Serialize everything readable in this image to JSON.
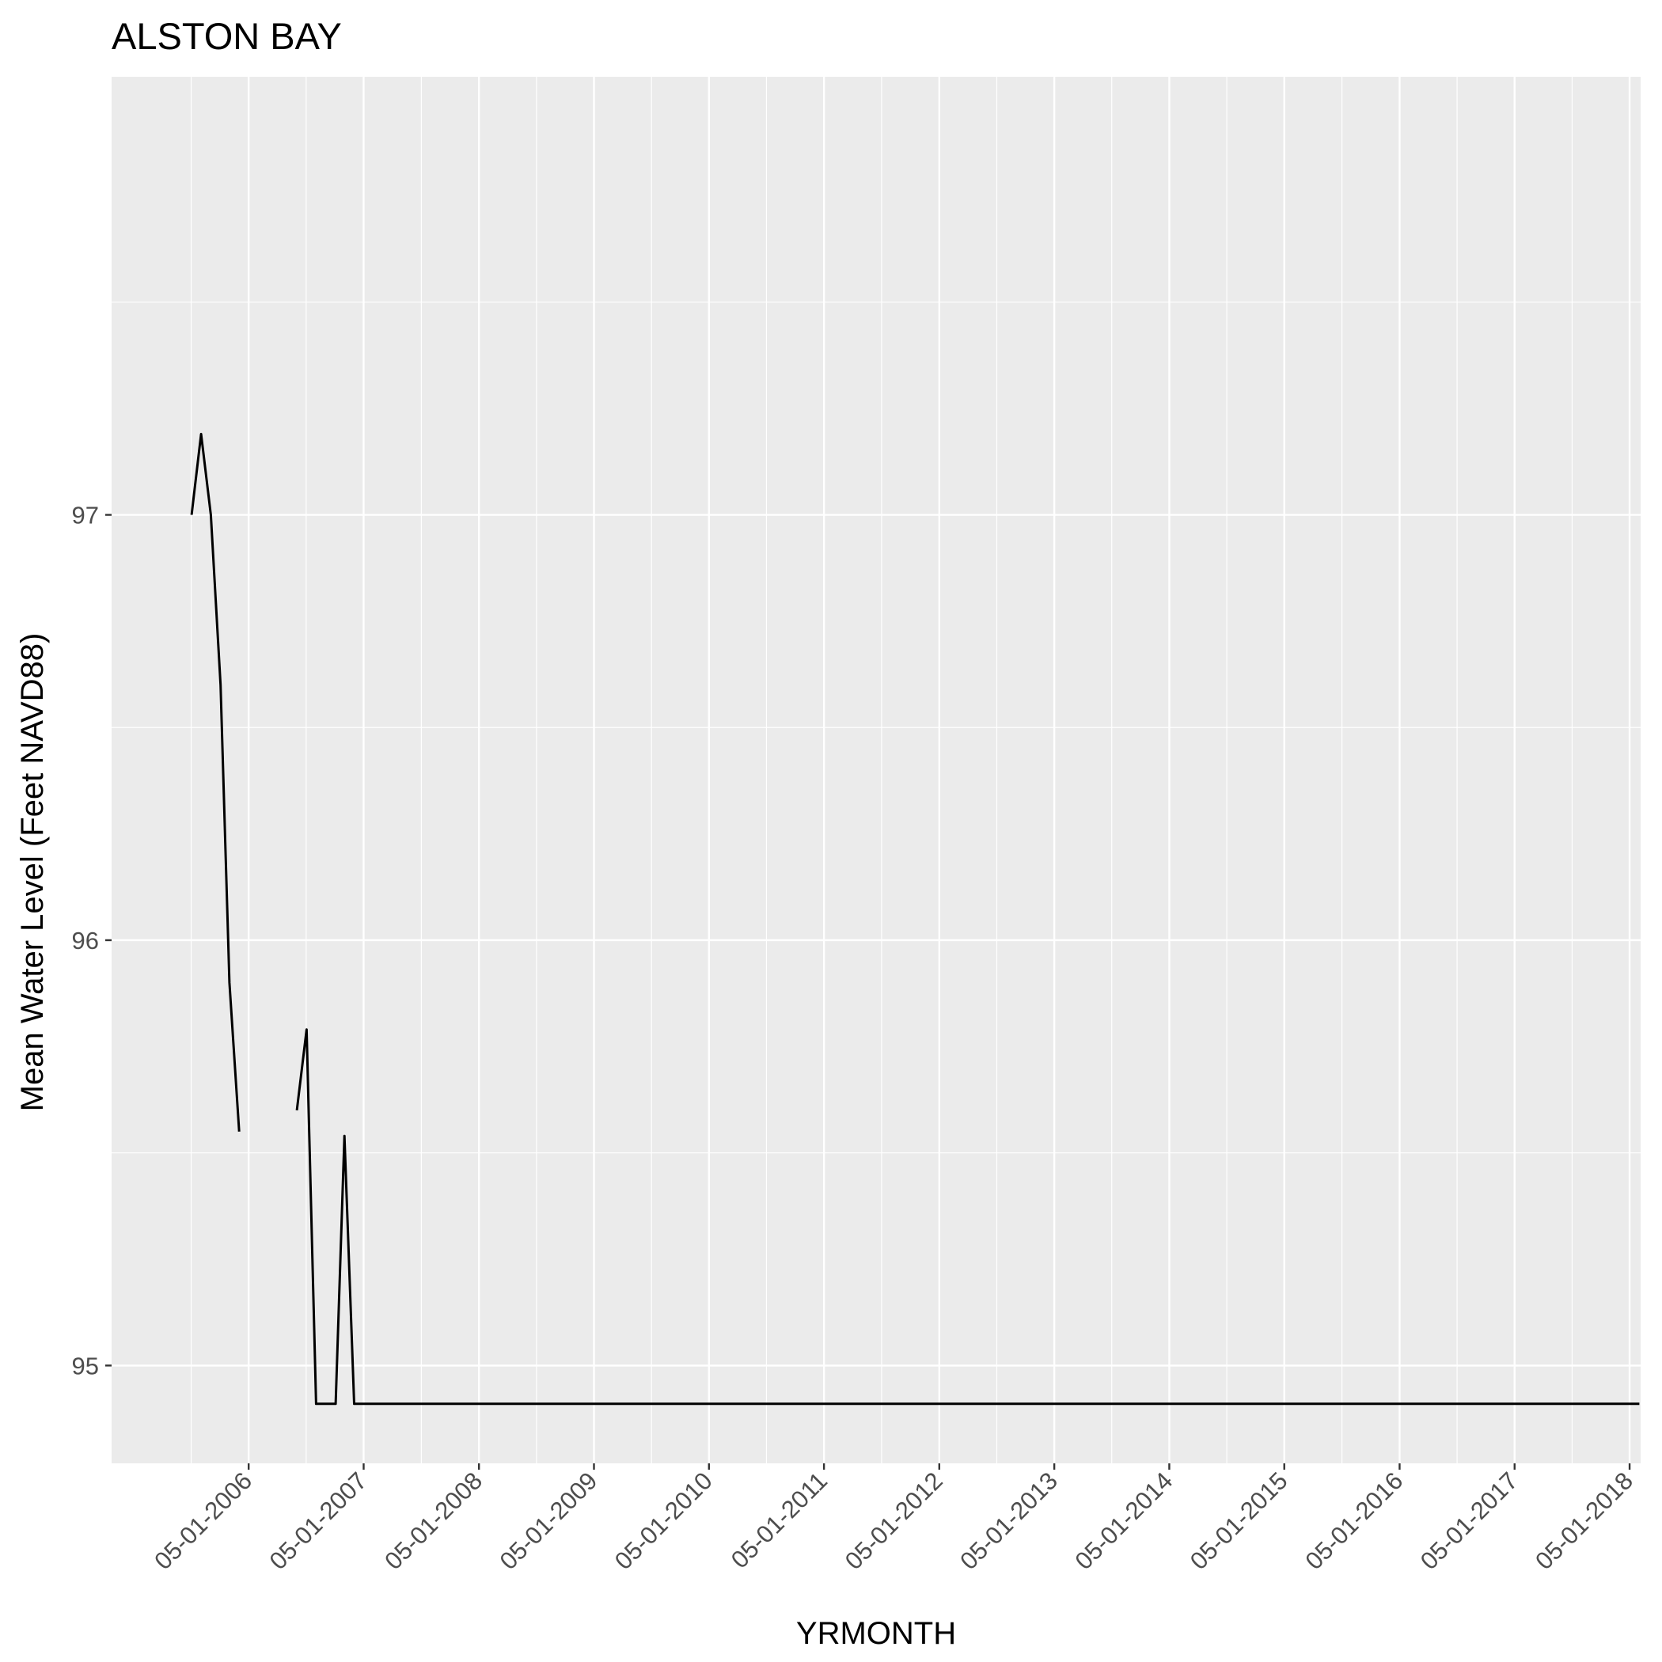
{
  "chart_data": {
    "type": "line",
    "title": "ALSTON BAY",
    "xlabel": "YRMONTH",
    "ylabel": "Mean Water Level (Feet NAVD88)",
    "xlim": [
      "2005-02-20",
      "2018-06-05"
    ],
    "ylim": [
      94.77,
      98.03
    ],
    "x_ticks": [
      "05-01-2006",
      "05-01-2007",
      "05-01-2008",
      "05-01-2009",
      "05-01-2010",
      "05-01-2011",
      "05-01-2012",
      "05-01-2013",
      "05-01-2014",
      "05-01-2015",
      "05-01-2016",
      "05-01-2017",
      "05-01-2018"
    ],
    "y_ticks": [
      95,
      96,
      97
    ],
    "grid": true,
    "background": "#EBEBEB",
    "series": [
      {
        "style": "line",
        "color": "#000000",
        "x": [
          "2005-11-01",
          "2005-12-01",
          "2006-01-01",
          "2006-02-01",
          "2006-03-01",
          "2006-04-01",
          null,
          "2006-10-01",
          "2006-11-01",
          "2006-12-01",
          "2007-01-01",
          "2007-02-01",
          "2007-03-01",
          "2007-04-01",
          "2007-05-01",
          "2007-06-01",
          "2007-07-01",
          "2007-08-01",
          "2007-09-01",
          "2007-10-01",
          "2007-11-01",
          "2007-12-01",
          "2008-01-01",
          "2008-02-01",
          "2008-03-01",
          "2008-04-01",
          "2008-05-01",
          "2008-06-01",
          "2008-07-01",
          "2008-08-01",
          "2008-09-01",
          "2008-10-01",
          "2008-11-01",
          "2008-12-01",
          "2009-01-01",
          "2009-02-01",
          "2009-03-01",
          "2009-04-01",
          "2009-05-01",
          "2009-06-01",
          "2009-07-01",
          "2009-08-01",
          "2009-09-01",
          "2009-10-01",
          "2009-11-01",
          "2009-12-01",
          "2010-01-01",
          "2010-02-01",
          "2010-03-01",
          "2010-04-01",
          "2010-05-01",
          "2010-06-01",
          "2010-07-01",
          "2010-08-01",
          "2010-09-01",
          "2010-10-01",
          "2010-11-01",
          "2010-12-01",
          "2011-01-01",
          "2011-02-01",
          "2011-03-01",
          "2011-04-01",
          "2011-05-01",
          "2011-06-01",
          "2011-07-01",
          "2011-08-01",
          "2011-09-01",
          "2011-10-01",
          "2011-11-01",
          "2011-12-01",
          "2012-01-01",
          "2012-02-01",
          "2012-03-01",
          "2012-04-01",
          "2012-05-01",
          "2012-06-01",
          "2012-07-01",
          "2012-08-01",
          "2012-09-01",
          "2012-10-01",
          "2012-11-01",
          "2012-12-01",
          "2013-01-01",
          "2013-02-01",
          "2013-03-01",
          "2013-04-01",
          "2013-05-01",
          "2013-06-01",
          "2013-07-01",
          "2013-08-01",
          "2013-09-01",
          "2013-10-01",
          "2013-11-01",
          "2013-12-01",
          "2014-01-01",
          "2014-02-01",
          "2014-03-01",
          "2014-04-01",
          "2014-05-01",
          "2014-06-01",
          "2014-07-01",
          "2014-08-01",
          "2014-09-01",
          "2014-10-01",
          "2014-11-01",
          "2014-12-01",
          "2015-01-01",
          "2015-02-01",
          "2015-03-01",
          "2015-04-01",
          "2015-05-01",
          "2015-06-01",
          "2015-07-01",
          "2015-08-01",
          "2015-09-01",
          "2015-10-01",
          "2015-11-01",
          "2015-12-01",
          "2016-01-01",
          "2016-02-01",
          "2016-03-01",
          "2016-04-01",
          "2016-05-01",
          "2016-06-01",
          "2016-07-01",
          "2016-08-01",
          "2016-09-01",
          "2016-10-01",
          "2016-11-01",
          "2016-12-01",
          "2017-01-01",
          "2017-02-01",
          "2017-03-01",
          "2017-04-01",
          "2017-05-01",
          "2017-06-01",
          "2017-07-01",
          "2017-08-01",
          "2017-09-01",
          "2017-10-01",
          "2017-11-01",
          "2017-12-01",
          "2018-01-01",
          "2018-02-01",
          "2018-03-01",
          "2018-04-01",
          "2018-05-01",
          "2018-06-01"
        ],
        "y": [
          97.0,
          97.19,
          97.0,
          96.6,
          95.9,
          95.55,
          null,
          95.6,
          95.79,
          94.91,
          94.91,
          94.91,
          95.54,
          94.91,
          94.91,
          94.91,
          94.91,
          94.91,
          94.91,
          94.91,
          94.91,
          94.91,
          94.91,
          94.91,
          94.91,
          94.91,
          94.91,
          94.91,
          94.91,
          94.91,
          94.91,
          94.91,
          94.91,
          94.91,
          94.91,
          94.91,
          94.91,
          94.91,
          94.91,
          94.91,
          94.91,
          94.91,
          94.91,
          94.91,
          94.91,
          94.91,
          94.91,
          94.91,
          94.91,
          94.91,
          94.91,
          94.91,
          94.91,
          94.91,
          94.91,
          94.91,
          94.91,
          94.91,
          94.91,
          94.91,
          94.91,
          94.91,
          94.91,
          94.91,
          94.91,
          94.91,
          94.91,
          94.91,
          94.91,
          94.91,
          94.91,
          94.91,
          94.91,
          94.91,
          94.91,
          94.91,
          94.91,
          94.91,
          94.91,
          94.91,
          94.91,
          94.91,
          94.91,
          94.91,
          94.91,
          94.91,
          94.91,
          94.91,
          94.91,
          94.91,
          94.91,
          94.91,
          94.91,
          94.91,
          94.91,
          94.91,
          94.91,
          94.91,
          94.91,
          94.91,
          94.91,
          94.91,
          94.91,
          94.91,
          94.91,
          94.91,
          94.91,
          94.91,
          94.91,
          94.91,
          94.91,
          94.91,
          94.91,
          94.91,
          94.91,
          94.91,
          94.91,
          94.91,
          94.91,
          94.91,
          94.91,
          94.91,
          94.91,
          94.91,
          94.91,
          94.91,
          94.91,
          94.91,
          94.91,
          94.91,
          94.91,
          94.91,
          94.91,
          94.91,
          94.91,
          94.91,
          94.91,
          94.91,
          94.91,
          94.91,
          94.91,
          94.91,
          94.91,
          94.91,
          94.91,
          94.91,
          94.91,
          94.91
        ]
      }
    ]
  }
}
